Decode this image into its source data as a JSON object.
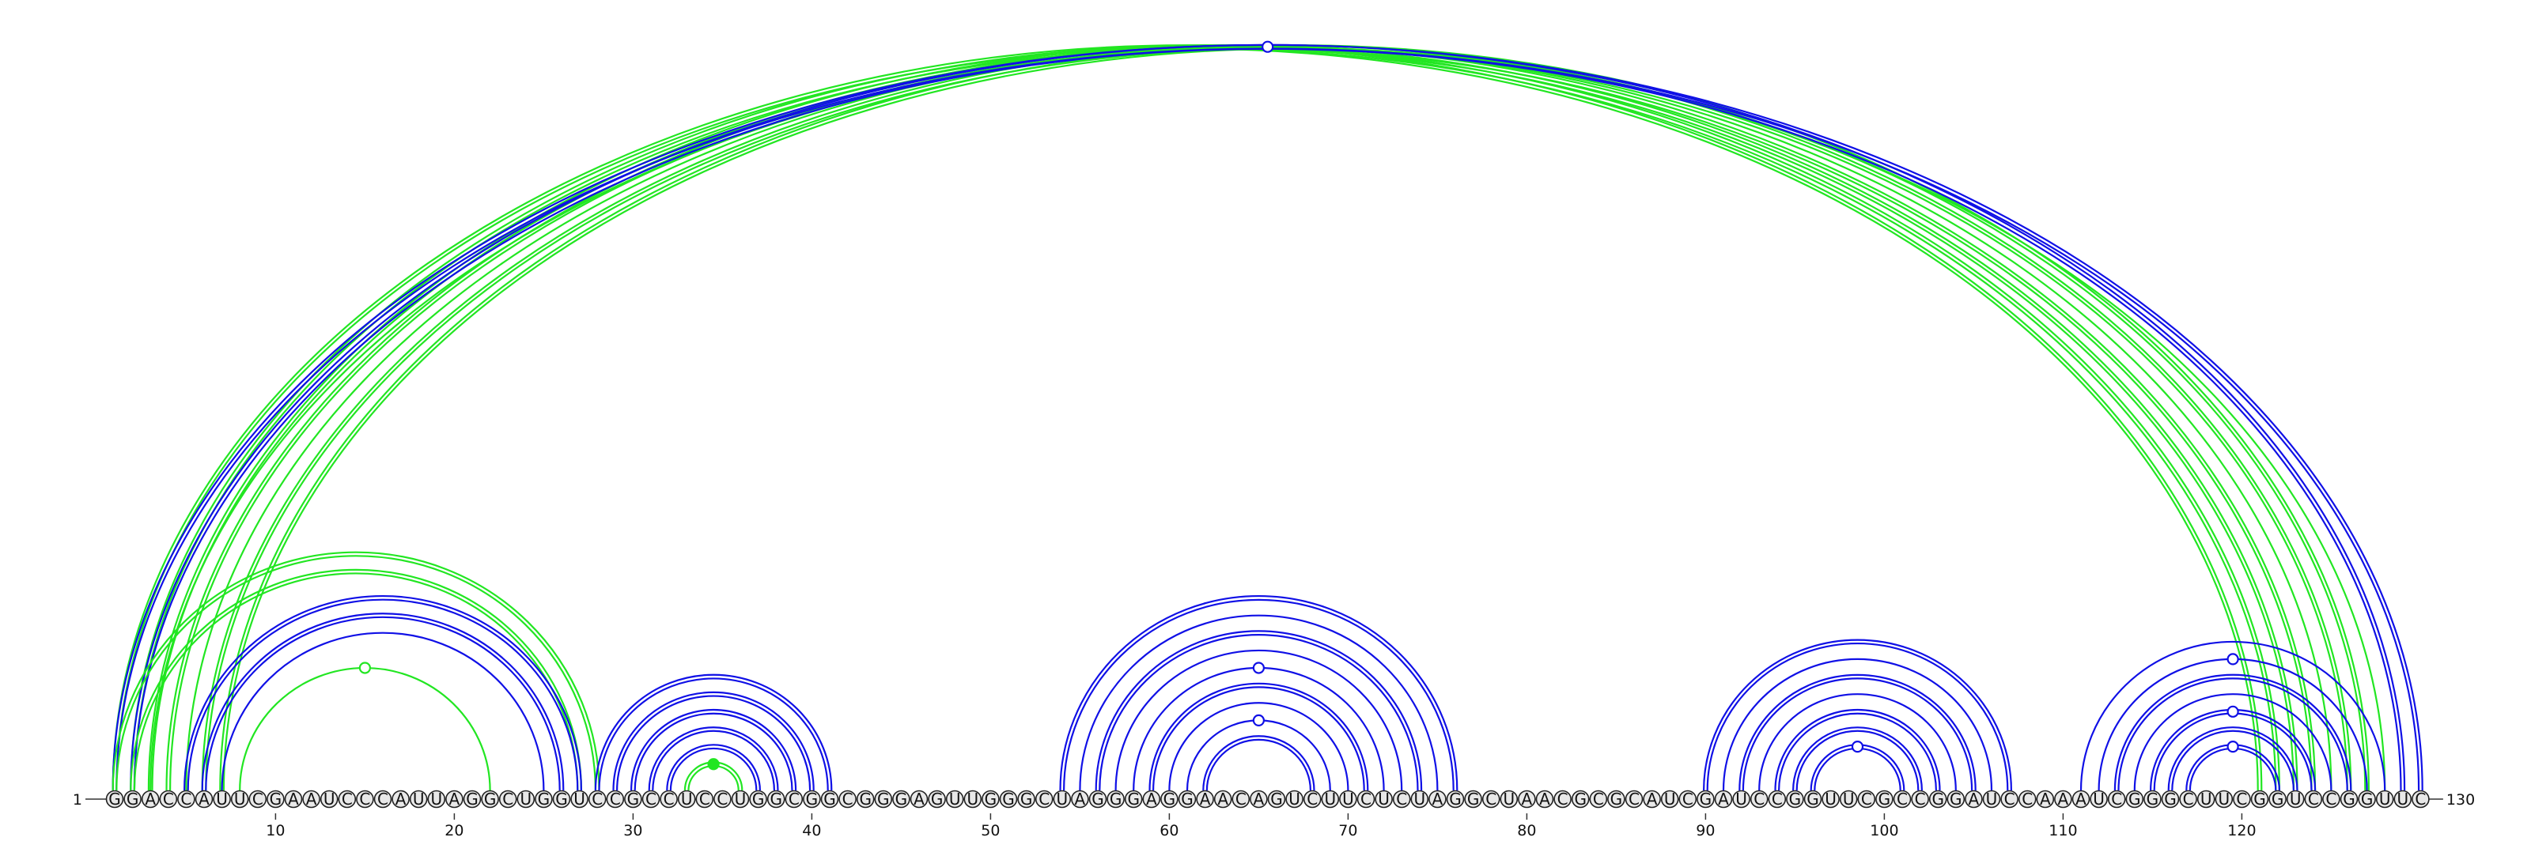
{
  "chart_data": {
    "type": "arc-diagram",
    "sequence": "GGACCAUUCGAAUCCCAUUAGGCUGGUCCGCCUCCUGGCGGCGGGAGUUGGGCUAGGGAGGAACAGUCUUCUCUAGGCUAACGCGCAUCGAUCCGGUUCGCCGGAUCCAAAUCGGGCUUCGGUCCGGUUC",
    "start_label": "1",
    "end_label": "130",
    "ticks": [
      10,
      20,
      30,
      40,
      50,
      60,
      70,
      80,
      90,
      100,
      110,
      120
    ],
    "tick_labels": [
      "10",
      "20",
      "30",
      "40",
      "50",
      "60",
      "70",
      "80",
      "90",
      "100",
      "110",
      "120"
    ],
    "colors": {
      "blue": "#1010e6",
      "green": "#22e622"
    },
    "arcs": [
      {
        "i": 1,
        "j": 121,
        "color": "green",
        "double": true
      },
      {
        "i": 2,
        "j": 122,
        "color": "green",
        "double": true
      },
      {
        "i": 3,
        "j": 123,
        "color": "green",
        "double": true
      },
      {
        "i": 4,
        "j": 124,
        "color": "green",
        "double": true
      },
      {
        "i": 5,
        "j": 125,
        "color": "green",
        "double": false
      },
      {
        "i": 6,
        "j": 126,
        "color": "green",
        "double": true
      },
      {
        "i": 7,
        "j": 127,
        "color": "green",
        "double": true
      },
      {
        "i": 3,
        "j": 128,
        "color": "green",
        "double": false
      },
      {
        "i": 2,
        "j": 129,
        "color": "blue",
        "double": true
      },
      {
        "i": 1,
        "j": 130,
        "color": "blue",
        "double": true,
        "marker": "open"
      },
      {
        "i": 1,
        "j": 28,
        "color": "green",
        "double": true
      },
      {
        "i": 2,
        "j": 27,
        "color": "green",
        "double": true
      },
      {
        "i": 5,
        "j": 27,
        "color": "blue",
        "double": true
      },
      {
        "i": 6,
        "j": 26,
        "color": "blue",
        "double": true
      },
      {
        "i": 7,
        "j": 25,
        "color": "blue",
        "double": false
      },
      {
        "i": 8,
        "j": 22,
        "color": "green",
        "double": false,
        "marker": "open"
      },
      {
        "i": 28,
        "j": 41,
        "color": "blue",
        "double": true
      },
      {
        "i": 29,
        "j": 40,
        "color": "blue",
        "double": true
      },
      {
        "i": 30,
        "j": 39,
        "color": "blue",
        "double": true
      },
      {
        "i": 31,
        "j": 38,
        "color": "blue",
        "double": true
      },
      {
        "i": 32,
        "j": 37,
        "color": "blue",
        "double": true
      },
      {
        "i": 33,
        "j": 36,
        "color": "green",
        "double": true,
        "marker": "filled"
      },
      {
        "i": 54,
        "j": 76,
        "color": "blue",
        "double": true
      },
      {
        "i": 55,
        "j": 75,
        "color": "blue",
        "double": false
      },
      {
        "i": 56,
        "j": 74,
        "color": "blue",
        "double": true
      },
      {
        "i": 57,
        "j": 73,
        "color": "blue",
        "double": false
      },
      {
        "i": 58,
        "j": 72,
        "color": "blue",
        "double": false,
        "marker": "open"
      },
      {
        "i": 59,
        "j": 71,
        "color": "blue",
        "double": true
      },
      {
        "i": 60,
        "j": 70,
        "color": "blue",
        "double": false
      },
      {
        "i": 61,
        "j": 69,
        "color": "blue",
        "double": false,
        "marker": "open"
      },
      {
        "i": 62,
        "j": 68,
        "color": "blue",
        "double": true
      },
      {
        "i": 90,
        "j": 107,
        "color": "blue",
        "double": true
      },
      {
        "i": 91,
        "j": 106,
        "color": "blue",
        "double": false
      },
      {
        "i": 92,
        "j": 105,
        "color": "blue",
        "double": true
      },
      {
        "i": 93,
        "j": 104,
        "color": "blue",
        "double": false
      },
      {
        "i": 94,
        "j": 103,
        "color": "blue",
        "double": true
      },
      {
        "i": 95,
        "j": 102,
        "color": "blue",
        "double": true
      },
      {
        "i": 96,
        "j": 101,
        "color": "blue",
        "double": true,
        "marker": "open"
      },
      {
        "i": 111,
        "j": 128,
        "color": "blue",
        "double": false
      },
      {
        "i": 112,
        "j": 127,
        "color": "blue",
        "double": false,
        "marker": "open"
      },
      {
        "i": 113,
        "j": 126,
        "color": "blue",
        "double": true
      },
      {
        "i": 114,
        "j": 125,
        "color": "blue",
        "double": false
      },
      {
        "i": 115,
        "j": 124,
        "color": "blue",
        "double": true,
        "marker": "open"
      },
      {
        "i": 116,
        "j": 123,
        "color": "blue",
        "double": true
      },
      {
        "i": 117,
        "j": 122,
        "color": "blue",
        "double": true,
        "marker": "open"
      }
    ]
  }
}
